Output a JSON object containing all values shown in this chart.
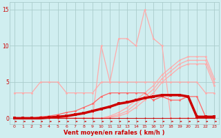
{
  "x": [
    0,
    1,
    2,
    3,
    4,
    5,
    6,
    7,
    8,
    9,
    10,
    11,
    12,
    13,
    14,
    15,
    16,
    17,
    18,
    19,
    20,
    21,
    22,
    23
  ],
  "line_spike": [
    0,
    0,
    0,
    0,
    0,
    0,
    0,
    0,
    0,
    0,
    10,
    5,
    11,
    11,
    10,
    15,
    11,
    10,
    0,
    0,
    0,
    0,
    0,
    0
  ],
  "line_flat_top": [
    3.5,
    3.5,
    3.5,
    5,
    5,
    5,
    3.5,
    3.5,
    3.5,
    3.5,
    5,
    5,
    5,
    5,
    5,
    5,
    5,
    5,
    5,
    5,
    5,
    5,
    3.5,
    3.5
  ],
  "line_rising1": [
    0,
    0,
    0,
    0,
    0,
    0,
    0,
    0,
    0,
    0,
    0,
    0.3,
    0.8,
    1.5,
    2.5,
    3.5,
    4.5,
    6,
    7,
    8,
    8.5,
    8.5,
    8.5,
    5.5
  ],
  "line_rising2": [
    0,
    0,
    0,
    0,
    0,
    0,
    0,
    0,
    0,
    0,
    0,
    0.2,
    0.5,
    1.0,
    2.0,
    3.0,
    4.0,
    5.5,
    6.5,
    7.5,
    8.0,
    8.0,
    8.0,
    5.0
  ],
  "line_rising3": [
    0,
    0,
    0,
    0,
    0,
    0,
    0,
    0,
    0,
    0,
    0,
    0.1,
    0.3,
    0.7,
    1.5,
    2.5,
    3.5,
    5.0,
    6.0,
    7.0,
    7.5,
    7.5,
    7.5,
    4.5
  ],
  "line_mid": [
    0,
    0,
    0,
    0.2,
    0.3,
    0.5,
    0.8,
    1.0,
    1.5,
    2.0,
    3.0,
    3.5,
    3.5,
    3.5,
    3.5,
    3.5,
    2.5,
    3.0,
    2.5,
    2.5,
    3.0,
    3.0,
    0.2,
    0.2
  ],
  "line_thick": [
    0,
    0,
    0,
    0,
    0.1,
    0.2,
    0.3,
    0.5,
    0.7,
    1.0,
    1.3,
    1.6,
    2.0,
    2.2,
    2.5,
    2.8,
    3.0,
    3.2,
    3.2,
    3.2,
    3.0,
    0.2,
    0.2,
    0.2
  ],
  "line_flat_low": [
    0,
    0,
    0,
    0,
    0,
    0,
    0,
    0,
    0,
    0,
    0,
    0,
    0,
    0,
    0,
    0,
    0,
    0,
    0,
    0,
    0,
    0,
    0,
    0
  ],
  "bg_color": "#d0eef0",
  "grid_color": "#aacccc",
  "lc_light": "#ffaaaa",
  "lc_mid": "#ff6666",
  "lc_dark": "#cc0000",
  "lc_thick": "#cc0000",
  "xlabel": "Vent moyen/en rafales ( km/h )",
  "ylim": [
    -0.8,
    16
  ],
  "xlim": [
    -0.5,
    23.5
  ],
  "yticks": [
    0,
    5,
    10,
    15
  ],
  "xticks": [
    0,
    1,
    2,
    3,
    4,
    5,
    6,
    7,
    8,
    9,
    10,
    11,
    12,
    13,
    14,
    15,
    16,
    17,
    18,
    19,
    20,
    21,
    22,
    23
  ]
}
